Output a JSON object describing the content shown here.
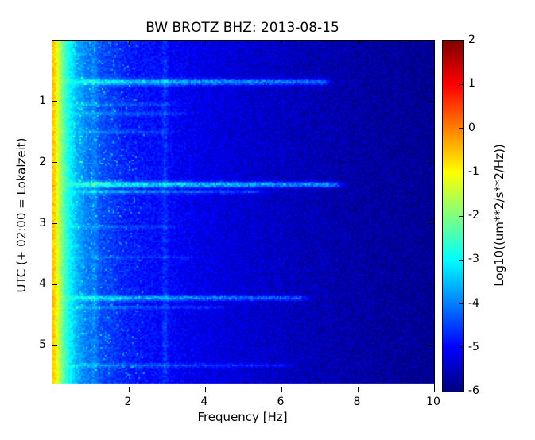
{
  "chart_data": {
    "type": "heatmap",
    "subtype": "spectrogram",
    "title": "BW BROTZ BHZ: 2013-08-15",
    "xlabel": "Frequency [Hz]",
    "ylabel": "UTC (+ 02:00 = Lokalzeit)",
    "xlim": [
      0,
      10
    ],
    "ylim": [
      0,
      5.75
    ],
    "xticks": [
      "2",
      "4",
      "6",
      "8",
      "10"
    ],
    "yticks": [
      "1",
      "2",
      "3",
      "4",
      "5"
    ],
    "time_extent_hours": 5.62,
    "grid": false,
    "colormap": "jet",
    "colorbar": {
      "label": "Log10((um**2/s**2/Hz))",
      "ticks": [
        "2",
        "1",
        "0",
        "-1",
        "-2",
        "-3",
        "-4",
        "-5",
        "-6"
      ],
      "vmin": -6,
      "vmax": 2
    },
    "noise_profile": {
      "comment": "background power Log10(um**2/s**2/Hz) vs frequency, strong microseism at low f",
      "freqs": [
        0,
        0.08,
        0.18,
        0.3,
        0.45,
        0.65,
        0.9,
        1.3,
        2.0,
        3.0,
        4.0,
        5.0,
        6.5,
        8.0,
        10.0
      ],
      "values": [
        -0.5,
        -0.8,
        -1.5,
        -2.3,
        -3.0,
        -3.6,
        -4.0,
        -4.4,
        -4.8,
        -5.0,
        -5.2,
        -5.35,
        -5.55,
        -5.7,
        -5.85
      ]
    },
    "vertical_lines": [
      {
        "f": 2.95,
        "amp": 0.5
      },
      {
        "f": 1.1,
        "amp": 0.3
      }
    ],
    "events": [
      {
        "time": 0.68,
        "halfwidth": 0.05,
        "fmax": 7.0,
        "amp": 1.9
      },
      {
        "time": 1.05,
        "halfwidth": 0.03,
        "fmax": 3.0,
        "amp": 0.55
      },
      {
        "time": 1.2,
        "halfwidth": 0.03,
        "fmax": 3.2,
        "amp": 0.7
      },
      {
        "time": 1.5,
        "halfwidth": 0.03,
        "fmax": 2.8,
        "amp": 0.5
      },
      {
        "time": 2.36,
        "halfwidth": 0.045,
        "fmax": 7.3,
        "amp": 2.3
      },
      {
        "time": 2.48,
        "halfwidth": 0.03,
        "fmax": 5.2,
        "amp": 1.2
      },
      {
        "time": 3.05,
        "halfwidth": 0.025,
        "fmax": 3.0,
        "amp": 0.55
      },
      {
        "time": 3.55,
        "halfwidth": 0.025,
        "fmax": 3.5,
        "amp": 0.5
      },
      {
        "time": 4.22,
        "halfwidth": 0.04,
        "fmax": 6.4,
        "amp": 1.7
      },
      {
        "time": 4.37,
        "halfwidth": 0.025,
        "fmax": 4.2,
        "amp": 0.8
      },
      {
        "time": 5.32,
        "halfwidth": 0.03,
        "fmax": 6.0,
        "amp": 0.9
      }
    ],
    "axis_color": "#000000",
    "background_color": "#ffffff"
  }
}
